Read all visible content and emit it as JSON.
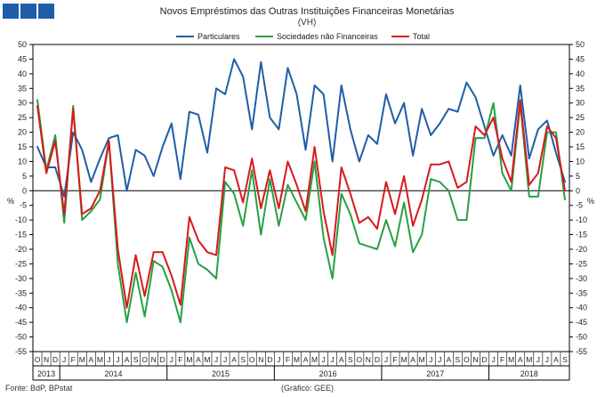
{
  "header": {
    "title": "Novos Empréstimos das Outras Instituições Financeiras Monetárias",
    "subtitle": "(VH)"
  },
  "brand": {
    "logo_color": "#1f5da8"
  },
  "footer": {
    "source": "Fonte: BdP, BPstat",
    "credit": "(Gráfico: GEE)"
  },
  "chart_data": {
    "type": "line",
    "title": "Novos Empréstimos das Outras Instituições Financeiras Monetárias",
    "subtitle": "(VH)",
    "ylabel_left": "%",
    "ylabel_right": "%",
    "ylim": [
      -55,
      50
    ],
    "yticks": [
      50,
      45,
      40,
      35,
      30,
      25,
      20,
      15,
      10,
      5,
      0,
      -5,
      -10,
      -15,
      -20,
      -25,
      -30,
      -35,
      -40,
      -45,
      -50,
      -55
    ],
    "month_labels": [
      "O",
      "N",
      "D",
      "J",
      "F",
      "M",
      "A",
      "M",
      "J",
      "J",
      "A",
      "S",
      "O",
      "N",
      "D",
      "J",
      "F",
      "M",
      "A",
      "M",
      "J",
      "J",
      "A",
      "S",
      "O",
      "N",
      "D",
      "J",
      "F",
      "M",
      "A",
      "M",
      "J",
      "J",
      "A",
      "S",
      "O",
      "N",
      "D",
      "J",
      "F",
      "M",
      "A",
      "M",
      "J",
      "J",
      "A",
      "S",
      "O",
      "N",
      "D",
      "J",
      "F",
      "M",
      "A",
      "M",
      "J",
      "J",
      "A",
      "S"
    ],
    "year_labels": [
      {
        "label": "2013",
        "start": 0,
        "end": 2
      },
      {
        "label": "2014",
        "start": 3,
        "end": 14
      },
      {
        "label": "2015",
        "start": 15,
        "end": 26
      },
      {
        "label": "2016",
        "start": 27,
        "end": 38
      },
      {
        "label": "2017",
        "start": 39,
        "end": 50
      },
      {
        "label": "2018",
        "start": 51,
        "end": 59
      }
    ],
    "series": [
      {
        "name": "Particulares",
        "color": "#1f5da8",
        "values": [
          15,
          8,
          8,
          -2,
          20,
          14,
          3,
          11,
          18,
          19,
          0,
          14,
          12,
          5,
          15,
          23,
          4,
          27,
          26,
          13,
          35,
          33,
          45,
          39,
          21,
          44,
          25,
          21,
          42,
          33,
          14,
          36,
          33,
          10,
          36,
          21,
          10,
          19,
          16,
          33,
          23,
          30,
          12,
          28,
          19,
          23,
          28,
          27,
          37,
          32,
          22,
          12,
          19,
          12,
          36,
          11,
          21,
          24,
          13,
          3
        ]
      },
      {
        "name": "Sociedades não Financeiras",
        "color": "#27a043",
        "values": [
          31,
          7,
          19,
          -11,
          29,
          -10,
          -7,
          -3,
          17,
          -25,
          -45,
          -28,
          -43,
          -24,
          -26,
          -34,
          -45,
          -16,
          -25,
          -27,
          -30,
          3,
          -1,
          -12,
          7,
          -15,
          4,
          -12,
          2,
          -4,
          -10,
          10,
          -16,
          -30,
          -1,
          -8,
          -18,
          -19,
          -20,
          -10,
          -19,
          -4,
          -21,
          -15,
          4,
          3,
          0,
          -10,
          -10,
          18,
          18,
          30,
          6,
          0,
          30,
          -2,
          -2,
          20,
          20,
          -3
        ]
      },
      {
        "name": "Total",
        "color": "#d8181c",
        "values": [
          29,
          6,
          17,
          -8,
          28,
          -8,
          -6,
          0,
          17,
          -20,
          -40,
          -22,
          -36,
          -21,
          -21,
          -29,
          -39,
          -9,
          -17,
          -21,
          -22,
          8,
          7,
          -4,
          11,
          -6,
          7,
          -6,
          10,
          2,
          -7,
          15,
          -7,
          -22,
          8,
          -1,
          -11,
          -9,
          -13,
          3,
          -8,
          5,
          -12,
          -3,
          9,
          9,
          10,
          1,
          3,
          22,
          19,
          25,
          11,
          3,
          31,
          2,
          6,
          22,
          18,
          0
        ]
      }
    ]
  }
}
